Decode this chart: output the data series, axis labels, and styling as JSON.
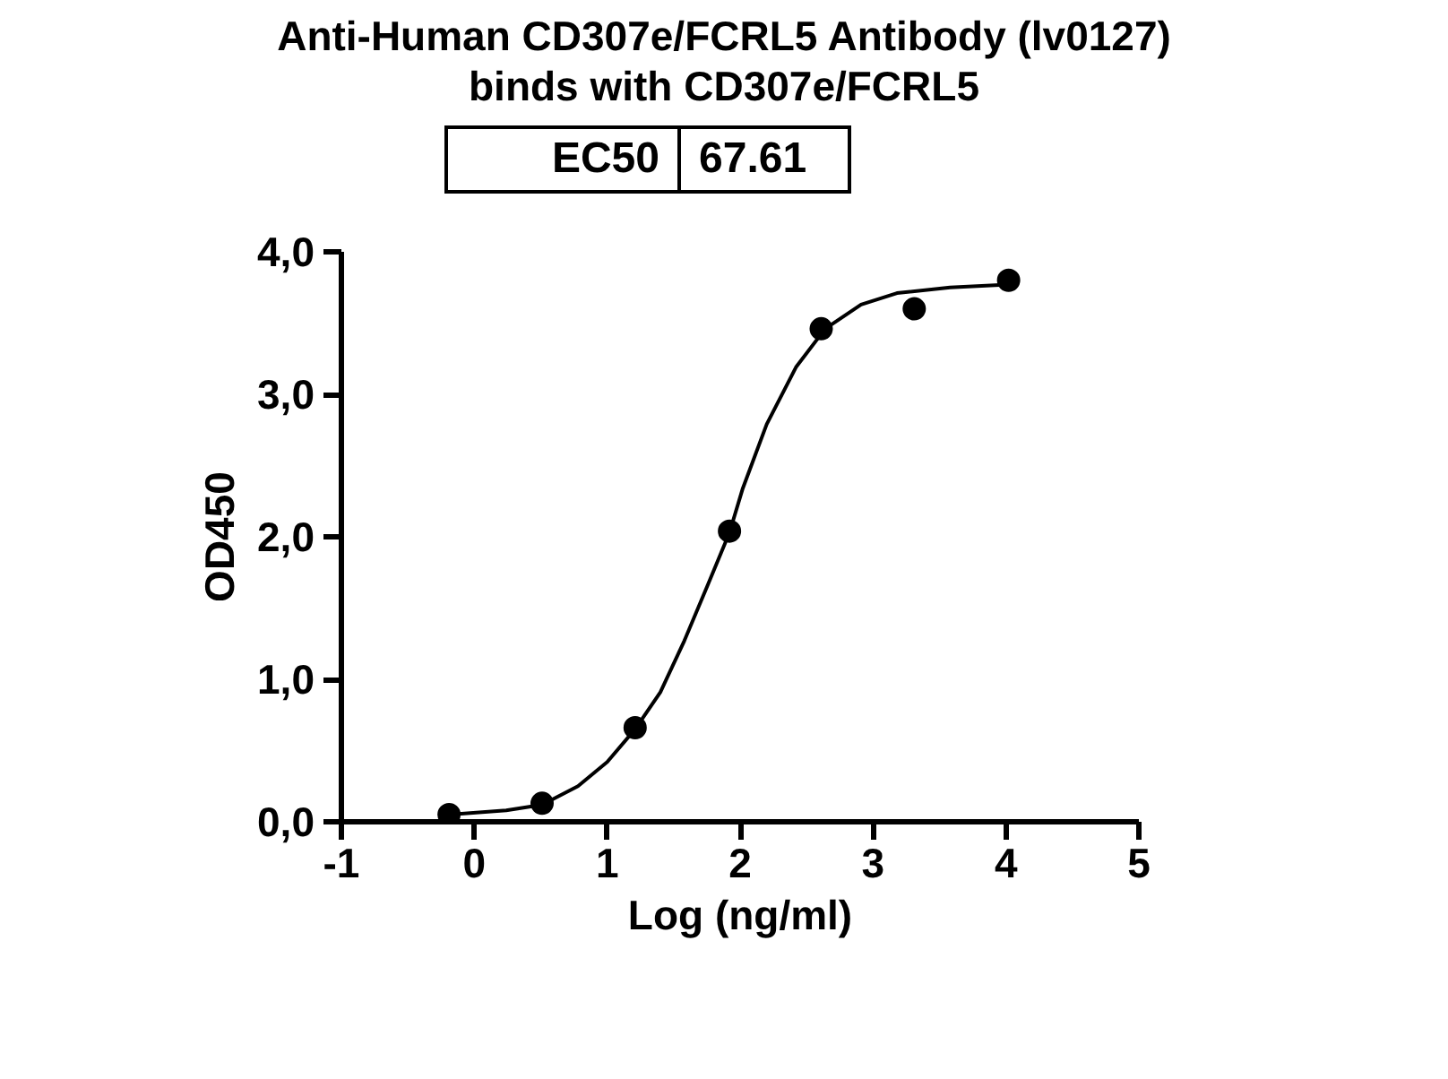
{
  "chart_data": {
    "type": "scatter",
    "title": "Anti-Human CD307e/FCRL5 Antibody (lv0127)\nbinds with CD307e/FCRL5",
    "xlabel": "Log (ng/ml)",
    "ylabel": "OD450",
    "annotations": [
      "EC50",
      "67.61"
    ],
    "xlim": [
      -1,
      5
    ],
    "xticks": [
      -1,
      0,
      1,
      2,
      3,
      4,
      5
    ],
    "ylim": [
      0,
      4
    ],
    "yticks": [
      {
        "value": 0,
        "label": "0,0"
      },
      {
        "value": 1,
        "label": "1,0"
      },
      {
        "value": 2,
        "label": "2,0"
      },
      {
        "value": 3,
        "label": "3,0"
      },
      {
        "value": 4,
        "label": "4,0"
      }
    ],
    "grid": false,
    "series": [
      {
        "marker": "circle",
        "color": "#000000",
        "x": [
          -0.19,
          0.51,
          1.21,
          1.92,
          2.61,
          3.31,
          4.02
        ],
        "values": [
          0.05,
          0.13,
          0.66,
          2.04,
          3.46,
          3.6,
          3.8
        ]
      },
      {
        "type": "line",
        "color": "#000000",
        "line_style": "solid",
        "x": [
          -0.19,
          0.24,
          0.51,
          0.78,
          1.0,
          1.21,
          1.4,
          1.58,
          1.76,
          1.92,
          2.02,
          2.2,
          2.42,
          2.64,
          2.91,
          3.18,
          3.58,
          4.02
        ],
        "values": [
          0.05,
          0.08,
          0.12,
          0.25,
          0.42,
          0.65,
          0.91,
          1.27,
          1.67,
          2.03,
          2.34,
          2.79,
          3.19,
          3.46,
          3.63,
          3.71,
          3.75,
          3.77
        ]
      }
    ]
  }
}
